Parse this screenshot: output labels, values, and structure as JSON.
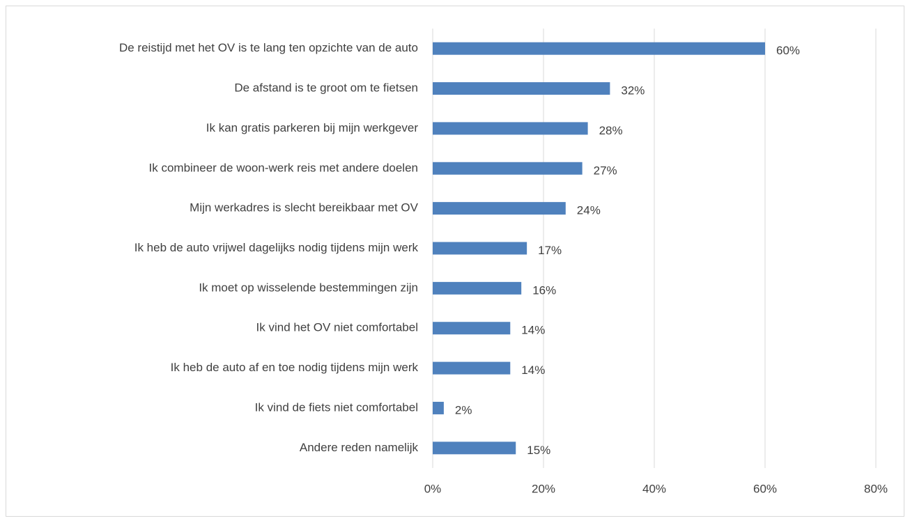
{
  "chart_data": {
    "type": "bar",
    "orientation": "horizontal",
    "categories": [
      "De reistijd met het OV is te lang ten opzichte van de auto",
      "De afstand is te groot om te fietsen",
      "Ik kan gratis parkeren bij mijn werkgever",
      "Ik combineer de woon-werk reis met andere doelen",
      "Mijn werkadres is slecht bereikbaar met OV",
      "Ik heb de auto vrijwel dagelijks nodig tijdens mijn werk",
      "Ik moet op wisselende bestemmingen zijn",
      "Ik vind het OV niet comfortabel",
      "Ik heb de auto af en toe nodig tijdens mijn werk",
      "Ik vind de fiets niet comfortabel",
      "Andere reden namelijk"
    ],
    "values": [
      60,
      32,
      28,
      27,
      24,
      17,
      16,
      14,
      14,
      2,
      15
    ],
    "value_labels": [
      "60%",
      "32%",
      "28%",
      "27%",
      "24%",
      "17%",
      "16%",
      "14%",
      "14%",
      "2%",
      "15%"
    ],
    "color": "#4f81bd",
    "xlim": [
      0,
      80
    ],
    "xticks": [
      {
        "value": 0,
        "label": "0%"
      },
      {
        "value": 20,
        "label": "20%"
      },
      {
        "value": 40,
        "label": "40%"
      },
      {
        "value": 60,
        "label": "60%"
      },
      {
        "value": 80,
        "label": "80%"
      }
    ],
    "grid": true
  }
}
